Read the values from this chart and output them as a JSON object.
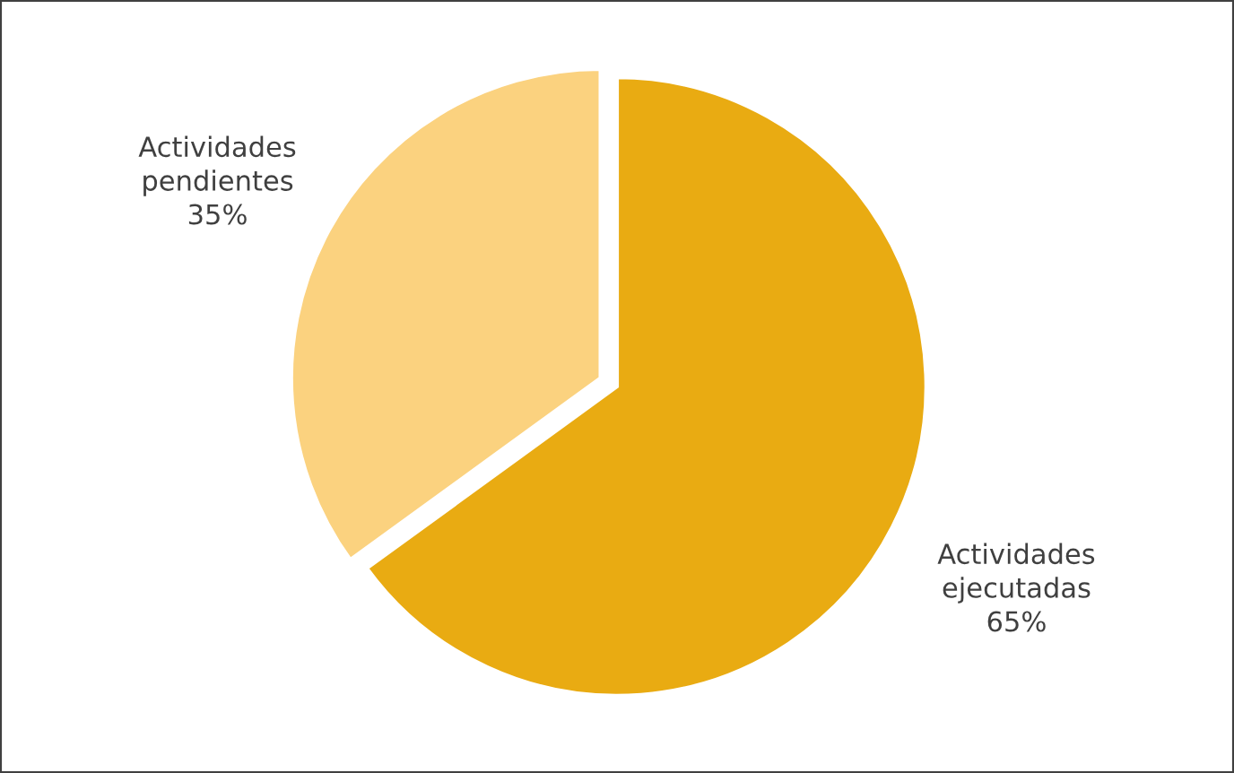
{
  "chart_data": {
    "type": "pie",
    "categories": [
      "Actividades\nejecutadas",
      "Actividades\npendientes"
    ],
    "values": [
      65,
      35
    ],
    "value_labels": [
      "65%",
      "35%"
    ],
    "colors": [
      "#e9ab12",
      "#fbd27f"
    ],
    "legend": false
  }
}
